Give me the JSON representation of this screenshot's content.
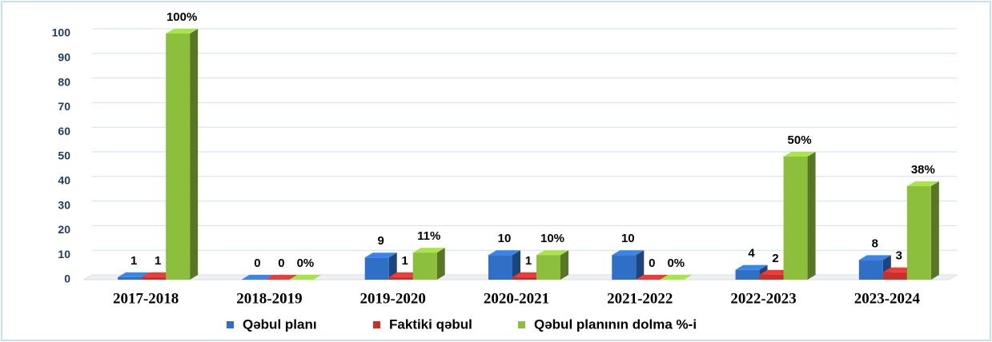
{
  "chart_data": {
    "type": "bar3d",
    "categories": [
      "2017-2018",
      "2018-2019",
      "2019-2020",
      "2020-2021",
      "2021-2022",
      "2022-2023",
      "2023-2024"
    ],
    "series": [
      {
        "name": "Qəbul planı",
        "color": "#2f6fc6",
        "values": [
          1,
          0,
          9,
          10,
          10,
          4,
          8
        ]
      },
      {
        "name": "Faktiki qəbul",
        "color": "#c8302c",
        "values": [
          1,
          0,
          1,
          1,
          0,
          2,
          3
        ]
      },
      {
        "name": "Qəbul planının dolma %-i",
        "color": "#8cc03c",
        "values": [
          100,
          0,
          11,
          10,
          0,
          50,
          38
        ],
        "value_labels": [
          "100%",
          "0%",
          "11%",
          "10%",
          "0%",
          "50%",
          "38%"
        ]
      }
    ],
    "ylim": [
      0,
      100
    ],
    "yticks": [
      0,
      10,
      20,
      30,
      40,
      50,
      60,
      70,
      80,
      90,
      100
    ],
    "grid": true
  }
}
